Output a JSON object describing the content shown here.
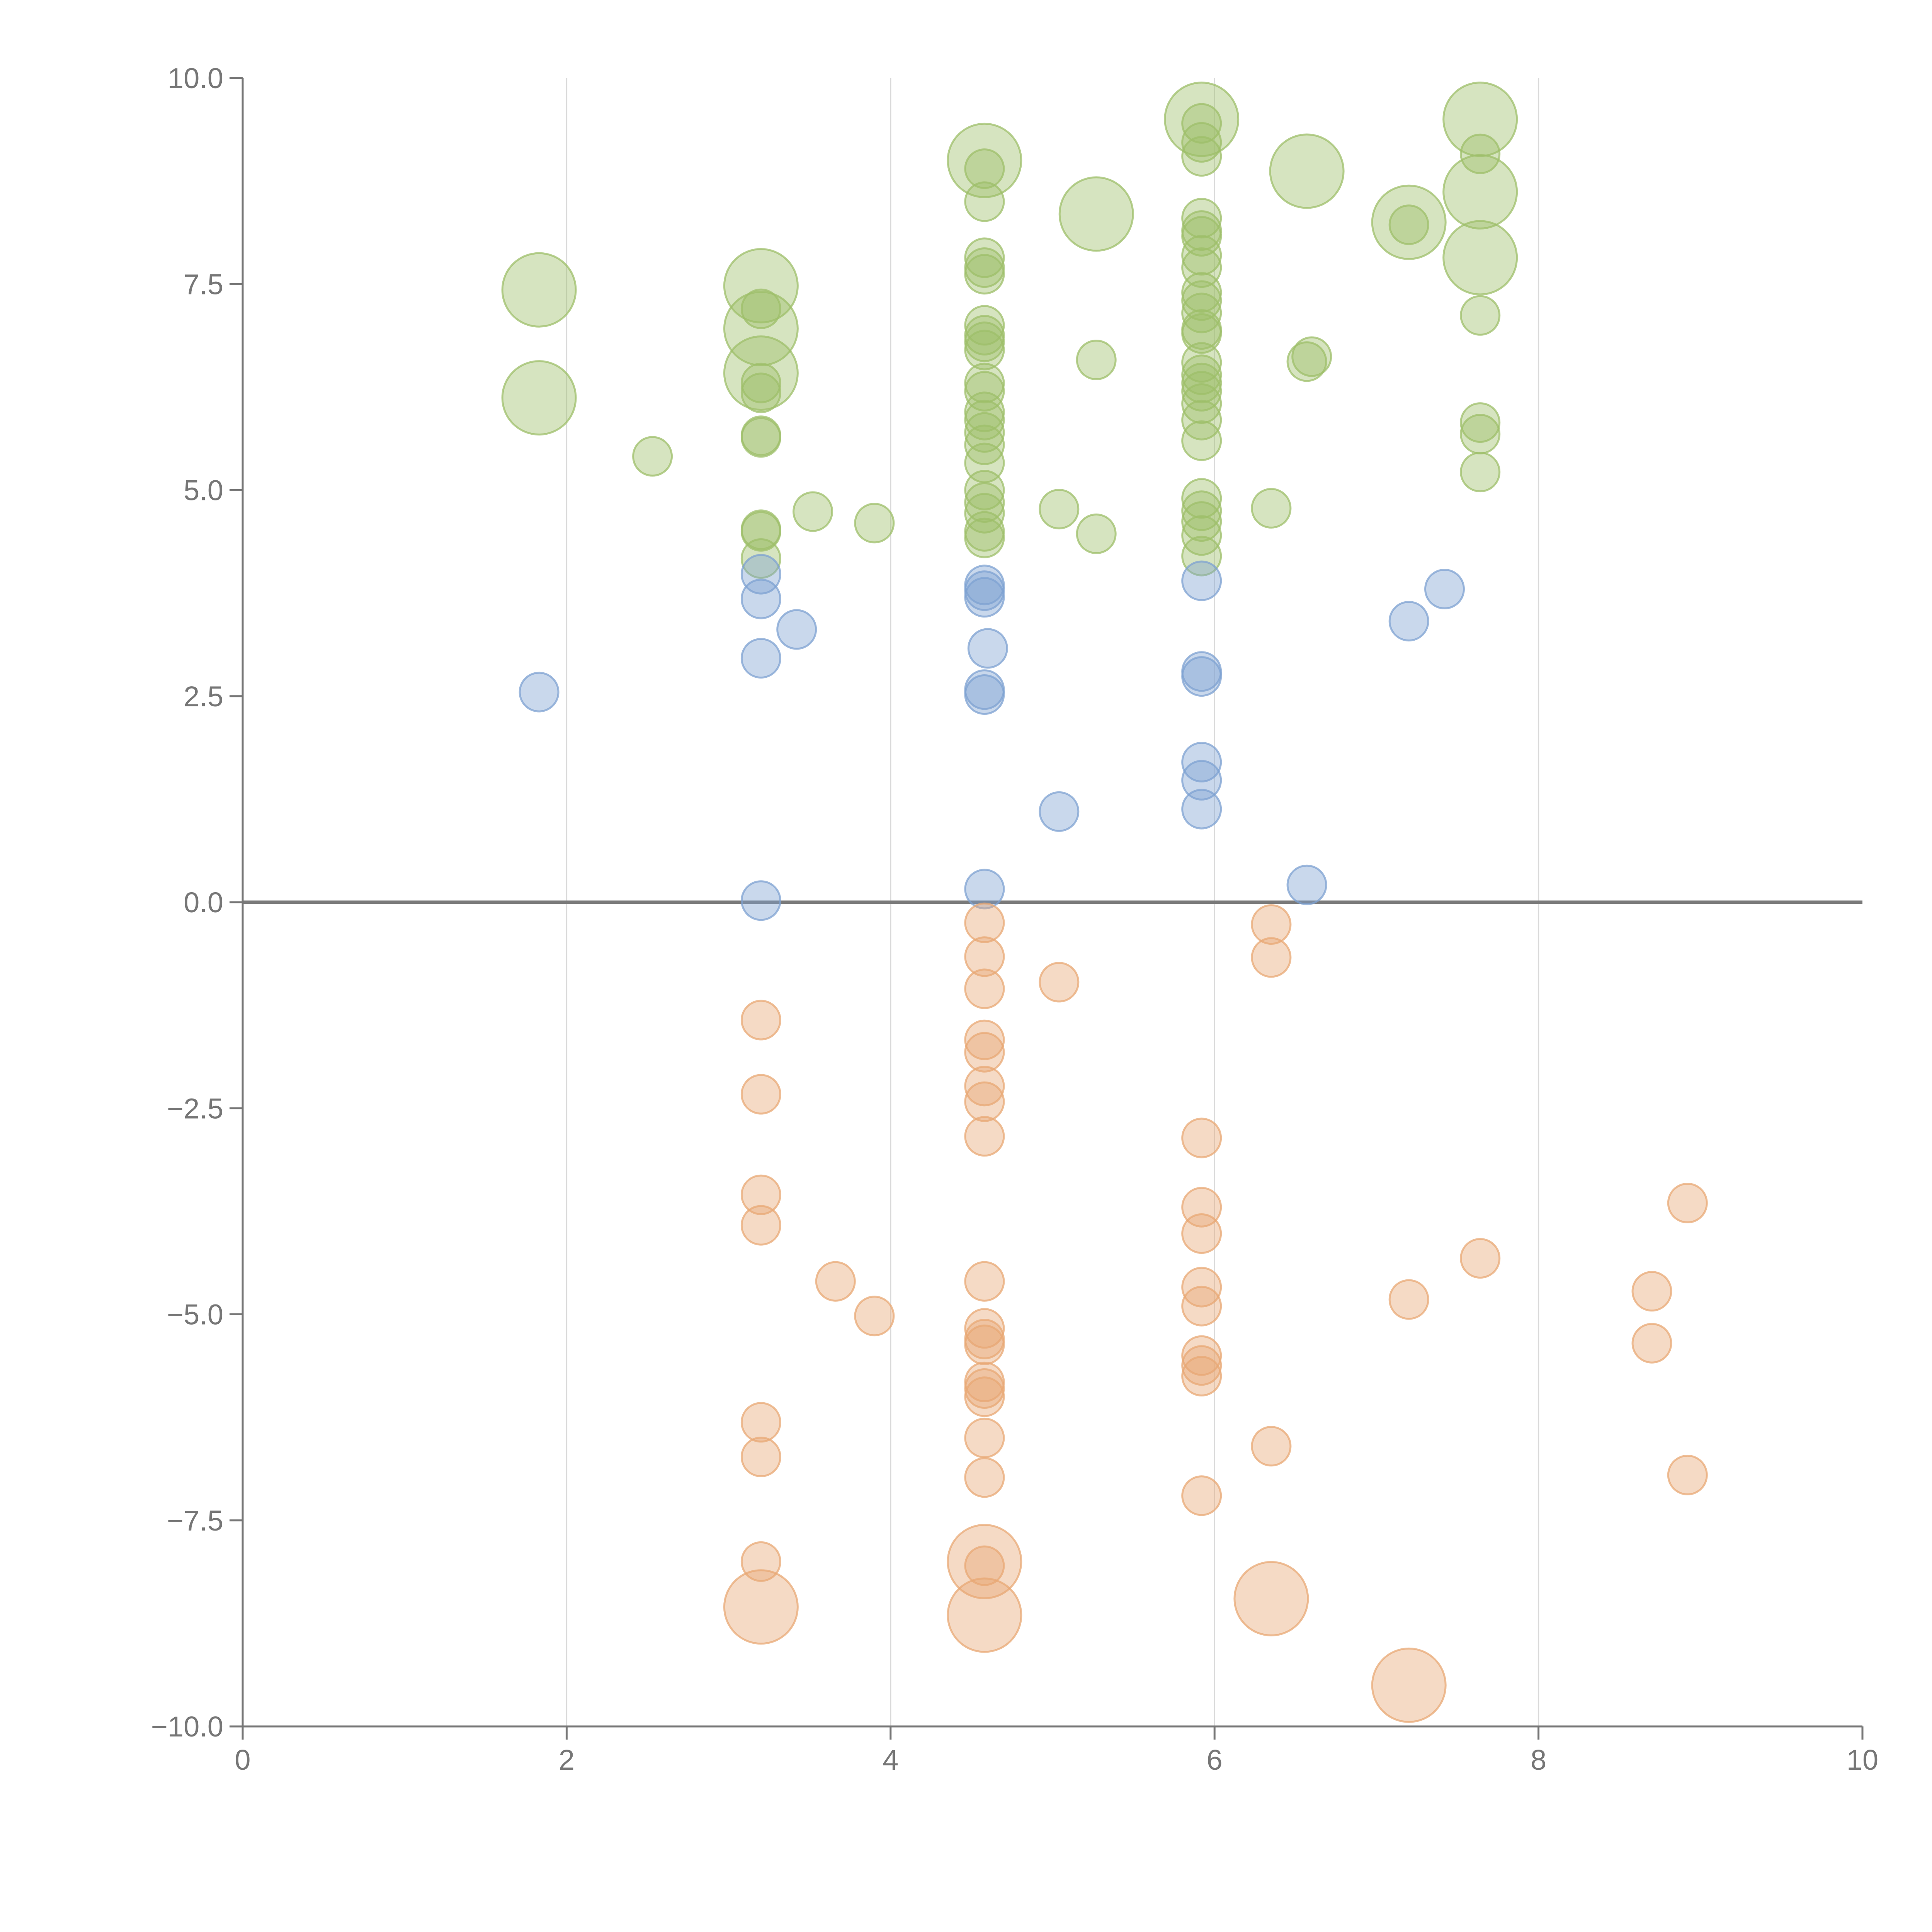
{
  "chart_data": {
    "type": "scatter",
    "title": "",
    "xlabel": "",
    "ylabel": "",
    "xlim": [
      0,
      10
    ],
    "ylim": [
      -10,
      10
    ],
    "x_ticks": [
      "0",
      "2",
      "4",
      "6",
      "8",
      "10"
    ],
    "y_ticks": [
      "10.0",
      "7.5",
      "5.0",
      "2.5",
      "0.0",
      "−2.5",
      "−5.0",
      "−7.5",
      "−10.0"
    ],
    "grid": "vertical lines at x = 2, 4, 6, 8",
    "zero_line": 0,
    "legend": "none",
    "series": [
      {
        "color": "#9dbf6a",
        "points": [
          [
            1.83,
            7.43,
            2
          ],
          [
            1.83,
            6.12,
            2
          ],
          [
            2.53,
            5.41,
            1
          ],
          [
            3.2,
            7.48,
            2
          ],
          [
            3.2,
            7.2,
            1
          ],
          [
            3.2,
            6.96,
            2
          ],
          [
            3.2,
            6.42,
            2
          ],
          [
            3.2,
            6.3,
            1
          ],
          [
            3.2,
            6.18,
            1
          ],
          [
            3.2,
            5.66,
            1
          ],
          [
            3.2,
            5.64,
            1
          ],
          [
            3.2,
            4.52,
            1
          ],
          [
            3.2,
            4.5,
            1
          ],
          [
            3.2,
            4.17,
            1
          ],
          [
            3.52,
            4.74,
            1
          ],
          [
            3.9,
            4.6,
            1
          ],
          [
            4.58,
            9.0,
            2
          ],
          [
            4.58,
            8.9,
            1
          ],
          [
            4.58,
            8.5,
            1
          ],
          [
            4.58,
            7.82,
            1
          ],
          [
            4.58,
            7.7,
            1
          ],
          [
            4.58,
            7.62,
            1
          ],
          [
            4.58,
            7.0,
            1
          ],
          [
            4.58,
            6.88,
            1
          ],
          [
            4.58,
            6.8,
            1
          ],
          [
            4.58,
            6.7,
            1
          ],
          [
            4.58,
            6.3,
            1
          ],
          [
            4.58,
            6.2,
            1
          ],
          [
            4.58,
            5.95,
            1
          ],
          [
            4.58,
            5.85,
            1
          ],
          [
            4.58,
            5.7,
            1
          ],
          [
            4.58,
            5.55,
            1
          ],
          [
            4.58,
            5.33,
            1
          ],
          [
            4.58,
            5.0,
            1
          ],
          [
            4.58,
            4.85,
            1
          ],
          [
            4.58,
            4.72,
            1
          ],
          [
            4.58,
            4.5,
            1
          ],
          [
            4.58,
            4.42,
            1
          ],
          [
            5.04,
            4.77,
            1
          ],
          [
            5.27,
            8.35,
            2
          ],
          [
            5.27,
            6.58,
            1
          ],
          [
            5.27,
            4.47,
            1
          ],
          [
            5.92,
            9.5,
            2
          ],
          [
            5.92,
            9.45,
            1
          ],
          [
            5.92,
            9.22,
            1
          ],
          [
            5.92,
            9.05,
            1
          ],
          [
            5.92,
            8.3,
            1
          ],
          [
            5.92,
            8.15,
            1
          ],
          [
            5.92,
            8.08,
            1
          ],
          [
            5.92,
            7.85,
            1
          ],
          [
            5.92,
            7.7,
            1
          ],
          [
            5.92,
            7.4,
            1
          ],
          [
            5.92,
            7.3,
            1
          ],
          [
            5.92,
            7.15,
            1
          ],
          [
            5.92,
            6.95,
            1
          ],
          [
            5.92,
            6.9,
            1
          ],
          [
            5.92,
            6.55,
            1
          ],
          [
            5.92,
            6.4,
            1
          ],
          [
            5.92,
            6.3,
            1
          ],
          [
            5.92,
            6.2,
            1
          ],
          [
            5.92,
            6.05,
            1
          ],
          [
            5.92,
            5.85,
            1
          ],
          [
            5.92,
            5.6,
            1
          ],
          [
            5.92,
            4.9,
            1
          ],
          [
            5.92,
            4.75,
            1
          ],
          [
            5.92,
            4.62,
            1
          ],
          [
            5.92,
            4.45,
            1
          ],
          [
            5.92,
            4.2,
            1
          ],
          [
            6.35,
            4.78,
            1
          ],
          [
            6.57,
            8.87,
            2
          ],
          [
            6.57,
            6.56,
            1
          ],
          [
            6.6,
            6.62,
            1
          ],
          [
            7.2,
            8.25,
            2
          ],
          [
            7.2,
            8.22,
            1
          ],
          [
            7.64,
            9.5,
            2
          ],
          [
            7.64,
            9.08,
            1
          ],
          [
            7.64,
            8.62,
            2
          ],
          [
            7.64,
            7.82,
            2
          ],
          [
            7.64,
            7.12,
            1
          ],
          [
            7.64,
            5.82,
            1
          ],
          [
            7.64,
            5.68,
            1
          ],
          [
            7.64,
            5.22,
            1
          ]
        ]
      },
      {
        "color": "#7ea1d1",
        "points": [
          [
            1.83,
            2.55,
            1
          ],
          [
            3.2,
            3.98,
            1
          ],
          [
            3.2,
            3.68,
            1
          ],
          [
            3.2,
            2.96,
            1
          ],
          [
            3.2,
            0.02,
            1
          ],
          [
            3.42,
            3.31,
            1
          ],
          [
            4.58,
            3.85,
            1
          ],
          [
            4.58,
            3.78,
            1
          ],
          [
            4.58,
            3.7,
            1
          ],
          [
            4.6,
            3.08,
            1
          ],
          [
            4.58,
            2.58,
            1
          ],
          [
            4.58,
            2.52,
            1
          ],
          [
            4.58,
            0.16,
            1
          ],
          [
            5.04,
            1.1,
            1
          ],
          [
            5.92,
            3.9,
            1
          ],
          [
            5.92,
            2.8,
            1
          ],
          [
            5.92,
            2.74,
            1
          ],
          [
            5.92,
            1.7,
            1
          ],
          [
            5.92,
            1.48,
            1
          ],
          [
            5.92,
            1.13,
            1
          ],
          [
            6.57,
            0.21,
            1
          ],
          [
            7.2,
            3.41,
            1
          ],
          [
            7.42,
            3.8,
            1
          ]
        ]
      },
      {
        "color": "#e8a874",
        "points": [
          [
            3.2,
            -1.43,
            1
          ],
          [
            3.2,
            -2.33,
            1
          ],
          [
            3.2,
            -3.55,
            1
          ],
          [
            3.2,
            -3.92,
            1
          ],
          [
            3.2,
            -6.31,
            1
          ],
          [
            3.2,
            -6.73,
            1
          ],
          [
            3.2,
            -8.0,
            1
          ],
          [
            3.2,
            -8.55,
            2
          ],
          [
            3.66,
            -4.6,
            1
          ],
          [
            3.9,
            -5.02,
            1
          ],
          [
            4.58,
            -0.25,
            1
          ],
          [
            4.58,
            -0.66,
            1
          ],
          [
            4.58,
            -1.05,
            1
          ],
          [
            4.58,
            -1.67,
            1
          ],
          [
            4.58,
            -1.82,
            1
          ],
          [
            4.58,
            -2.23,
            1
          ],
          [
            4.58,
            -2.42,
            1
          ],
          [
            4.58,
            -2.84,
            1
          ],
          [
            4.58,
            -4.6,
            1
          ],
          [
            4.58,
            -5.17,
            1
          ],
          [
            4.58,
            -5.3,
            1
          ],
          [
            4.58,
            -5.37,
            1
          ],
          [
            4.58,
            -5.82,
            1
          ],
          [
            4.58,
            -5.9,
            1
          ],
          [
            4.58,
            -6.0,
            1
          ],
          [
            4.58,
            -6.5,
            1
          ],
          [
            4.58,
            -6.98,
            1
          ],
          [
            4.58,
            -8.0,
            2
          ],
          [
            4.58,
            -8.05,
            1
          ],
          [
            4.58,
            -8.65,
            2
          ],
          [
            5.04,
            -0.97,
            1
          ],
          [
            5.92,
            -2.86,
            1
          ],
          [
            5.92,
            -3.7,
            1
          ],
          [
            5.92,
            -4.02,
            1
          ],
          [
            5.92,
            -4.67,
            1
          ],
          [
            5.92,
            -4.9,
            1
          ],
          [
            5.92,
            -5.5,
            1
          ],
          [
            5.92,
            -5.62,
            1
          ],
          [
            5.92,
            -5.75,
            1
          ],
          [
            5.92,
            -7.2,
            1
          ],
          [
            6.35,
            -0.27,
            1
          ],
          [
            6.35,
            -0.67,
            1
          ],
          [
            6.35,
            -6.6,
            1
          ],
          [
            6.35,
            -8.45,
            2
          ],
          [
            7.2,
            -4.82,
            1
          ],
          [
            7.2,
            -9.5,
            2
          ],
          [
            7.64,
            -4.32,
            1
          ],
          [
            8.7,
            -4.72,
            1
          ],
          [
            8.7,
            -5.35,
            1
          ],
          [
            8.92,
            -3.65,
            1
          ],
          [
            8.92,
            -6.95,
            1
          ]
        ]
      }
    ]
  }
}
